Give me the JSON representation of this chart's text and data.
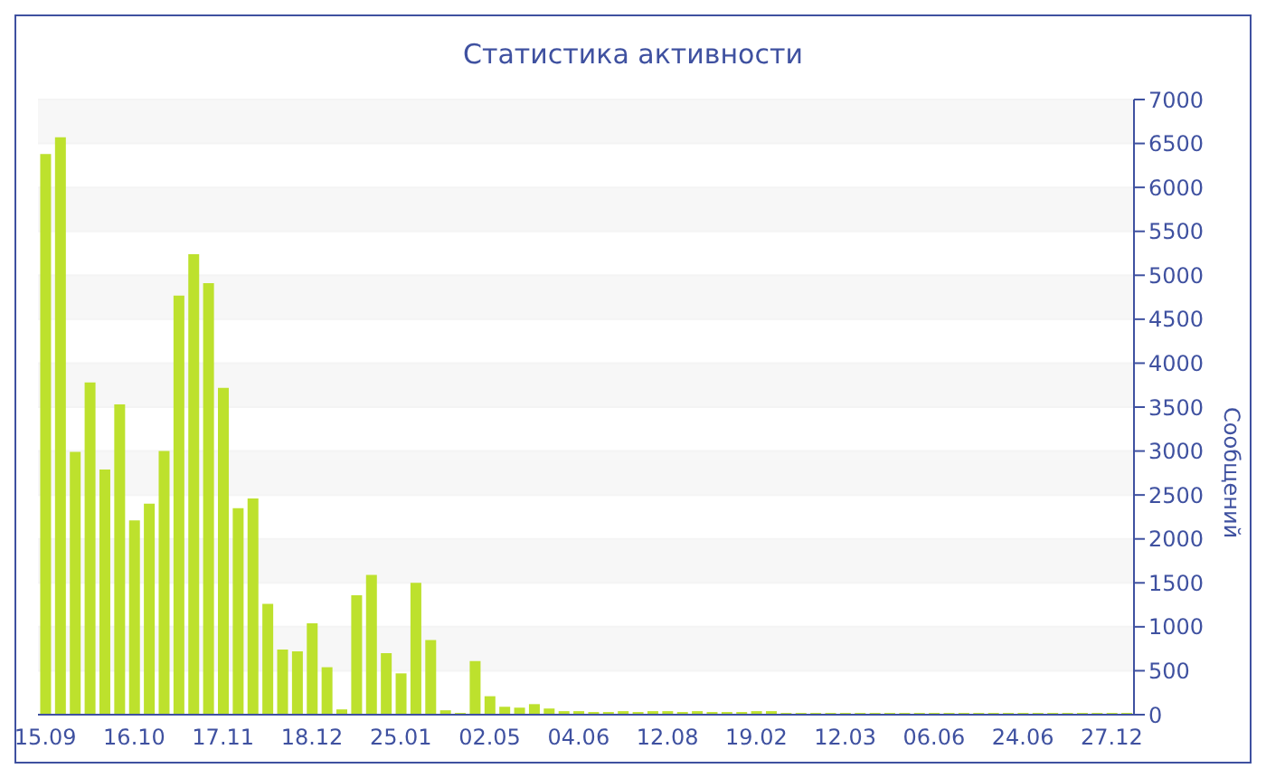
{
  "chart_data": {
    "type": "bar",
    "title": "Статистика активности",
    "ylabel": "Сообщений",
    "categories": [
      "15.09",
      null,
      null,
      null,
      null,
      null,
      "16.10",
      null,
      null,
      null,
      null,
      null,
      "17.11",
      null,
      null,
      null,
      null,
      null,
      "18.12",
      null,
      null,
      null,
      null,
      null,
      "25.01",
      null,
      null,
      null,
      null,
      null,
      "02.05",
      null,
      null,
      null,
      null,
      null,
      "04.06",
      null,
      null,
      null,
      null,
      null,
      "12.08",
      null,
      null,
      null,
      null,
      null,
      "19.02",
      null,
      null,
      null,
      null,
      null,
      "12.03",
      null,
      null,
      null,
      null,
      null,
      "06.06",
      null,
      null,
      null,
      null,
      null,
      "24.06",
      null,
      null,
      null,
      null,
      null,
      "27.12",
      null
    ],
    "values": [
      6380,
      6570,
      2990,
      3780,
      2790,
      3530,
      2210,
      2400,
      3000,
      4770,
      5240,
      4910,
      3720,
      2350,
      2460,
      1260,
      740,
      720,
      1040,
      540,
      60,
      1360,
      1590,
      700,
      470,
      1500,
      850,
      50,
      20,
      610,
      210,
      90,
      80,
      120,
      70,
      40,
      40,
      30,
      30,
      40,
      30,
      40,
      40,
      30,
      40,
      30,
      30,
      30,
      40,
      40,
      20,
      20,
      20,
      20,
      20,
      20,
      20,
      20,
      20,
      20,
      20,
      20,
      20,
      20,
      20,
      20,
      20,
      20,
      20,
      20,
      20,
      20,
      20,
      20
    ],
    "color": "#bde12d",
    "ylim": [
      0,
      7000
    ],
    "yticks": [
      0,
      500,
      1000,
      1500,
      2000,
      2500,
      3000,
      3500,
      4000,
      4500,
      5000,
      5500,
      6000,
      6500,
      7000
    ],
    "grid": "y"
  }
}
